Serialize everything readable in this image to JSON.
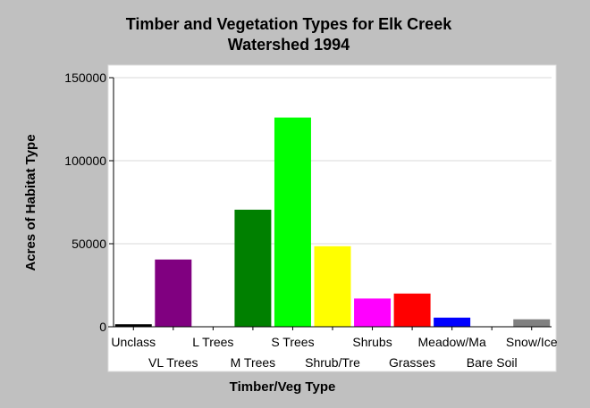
{
  "chart_data": {
    "type": "bar",
    "title_lines": [
      "Timber and Vegetation Types for Elk Creek",
      "Watershed 1994"
    ],
    "xlabel": "Timber/Veg Type",
    "ylabel": "Acres of Habitat Type",
    "ylim": [
      0,
      150000
    ],
    "yticks": [
      0,
      50000,
      100000,
      150000
    ],
    "grid": true,
    "categories": [
      "Unclass",
      "VL Trees",
      "L Trees",
      "M Trees",
      "S Trees",
      "Shrub/Tre",
      "Shrubs",
      "Grasses",
      "Meadow/Ma",
      "Bare Soil",
      "Snow/Ice"
    ],
    "values": [
      1500,
      40500,
      0,
      70500,
      126000,
      48500,
      17000,
      20000,
      5500,
      0,
      4500
    ],
    "colors": [
      "#000000",
      "#800080",
      "#808080",
      "#008000",
      "#00ff00",
      "#ffff00",
      "#ff00ff",
      "#ff0000",
      "#0000ff",
      "#808080",
      "#808080"
    ]
  }
}
